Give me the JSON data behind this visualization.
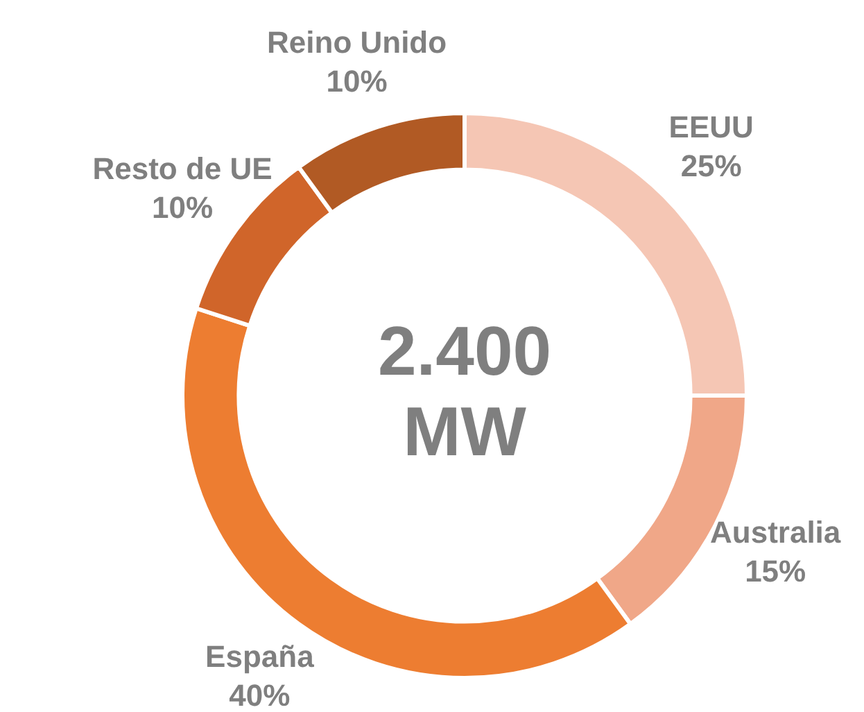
{
  "chart_data": {
    "type": "donut",
    "categories": [
      "EEUU",
      "Australia",
      "España",
      "Resto de UE",
      "Reino Unido"
    ],
    "values": [
      25,
      15,
      40,
      10,
      10
    ],
    "colors": [
      "#f5c6b4",
      "#f0a788",
      "#ed7d31",
      "#d0652a",
      "#b15a24"
    ],
    "value_labels": [
      "25%",
      "15%",
      "40%",
      "10%",
      "10%"
    ],
    "annotations": [
      "2.400 MW"
    ],
    "legend": false
  }
}
